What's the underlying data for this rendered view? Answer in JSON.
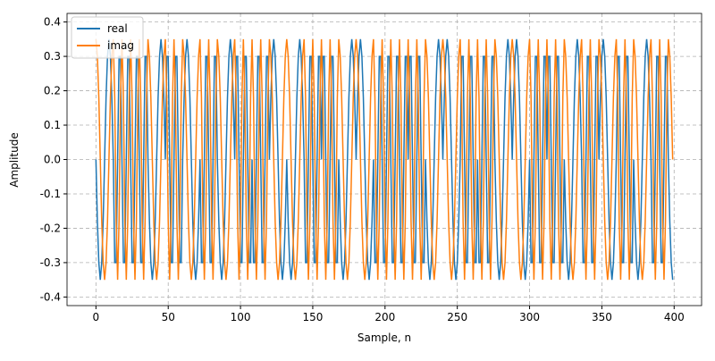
{
  "chart_data": {
    "type": "line",
    "xlabel": "Sample, n",
    "ylabel": "Amplitude",
    "xlim": [
      -20,
      419
    ],
    "ylim": [
      -0.425,
      0.425
    ],
    "xticks": [
      0,
      50,
      100,
      150,
      200,
      250,
      300,
      350,
      400
    ],
    "yticks": [
      -0.4,
      -0.3,
      -0.2,
      -0.1,
      {
        "value": 0,
        "label": "0.0"
      },
      0.1,
      0.2,
      0.3,
      0.4
    ],
    "grid": true,
    "legend": "upper-left",
    "x": [
      0,
      1,
      2,
      3,
      4,
      5,
      6,
      7,
      8,
      9,
      10,
      11,
      12,
      13,
      14,
      15,
      16,
      17,
      18,
      19,
      20,
      21,
      22,
      23,
      24,
      25,
      26,
      27,
      28,
      29,
      30,
      31,
      32,
      33,
      34,
      35,
      36,
      37,
      38,
      39,
      40,
      41,
      42,
      43,
      44,
      45,
      46,
      47,
      48,
      49,
      50,
      51,
      52,
      53,
      54,
      55,
      56,
      57,
      58,
      59,
      60,
      61,
      62,
      63,
      64,
      65,
      66,
      67,
      68,
      69,
      70,
      71,
      72,
      73,
      74,
      75,
      76,
      77,
      78,
      79,
      80,
      81,
      82,
      83,
      84,
      85,
      86,
      87,
      88,
      89,
      90,
      91,
      92,
      93,
      94,
      95,
      96,
      97,
      98,
      99,
      100,
      101,
      102,
      103,
      104,
      105,
      106,
      107,
      108,
      109,
      110,
      111,
      112,
      113,
      114,
      115,
      116,
      117,
      118,
      119,
      120,
      121,
      122,
      123,
      124,
      125,
      126,
      127,
      128,
      129,
      130,
      131,
      132,
      133,
      134,
      135,
      136,
      137,
      138,
      139,
      140,
      141,
      142,
      143,
      144,
      145,
      146,
      147,
      148,
      149,
      150,
      151,
      152,
      153,
      154,
      155,
      156,
      157,
      158,
      159,
      160,
      161,
      162,
      163,
      164,
      165,
      166,
      167,
      168,
      169,
      170,
      171,
      172,
      173,
      174,
      175,
      176,
      177,
      178,
      179,
      180,
      181,
      182,
      183,
      184,
      185,
      186,
      187,
      188,
      189,
      190,
      191,
      192,
      193,
      194,
      195,
      196,
      197,
      198,
      199,
      200,
      201,
      202,
      203,
      204,
      205,
      206,
      207,
      208,
      209,
      210,
      211,
      212,
      213,
      214,
      215,
      216,
      217,
      218,
      219,
      220,
      221,
      222,
      223,
      224,
      225,
      226,
      227,
      228,
      229,
      230,
      231,
      232,
      233,
      234,
      235,
      236,
      237,
      238,
      239,
      240,
      241,
      242,
      243,
      244,
      245,
      246,
      247,
      248,
      249,
      250,
      251,
      252,
      253,
      254,
      255,
      256,
      257,
      258,
      259,
      260,
      261,
      262,
      263,
      264,
      265,
      266,
      267,
      268,
      269,
      270,
      271,
      272,
      273,
      274,
      275,
      276,
      277,
      278,
      279,
      280,
      281,
      282,
      283,
      284,
      285,
      286,
      287,
      288,
      289,
      290,
      291,
      292,
      293,
      294,
      295,
      296,
      297,
      298,
      299,
      300,
      301,
      302,
      303,
      304,
      305,
      306,
      307,
      308,
      309,
      310,
      311,
      312,
      313,
      314,
      315,
      316,
      317,
      318,
      319,
      320,
      321,
      322,
      323,
      324,
      325,
      326,
      327,
      328,
      329,
      330,
      331,
      332,
      333,
      334,
      335,
      336,
      337,
      338,
      339,
      340,
      341,
      342,
      343,
      344,
      345,
      346,
      347,
      348,
      349,
      350,
      351,
      352,
      353,
      354,
      355,
      356,
      357,
      358,
      359,
      360,
      361,
      362,
      363,
      364,
      365,
      366,
      367,
      368,
      369,
      370,
      371,
      372,
      373,
      374,
      375,
      376,
      377,
      378,
      379,
      380,
      381,
      382,
      383,
      384,
      385,
      386,
      387,
      388,
      389,
      390,
      391,
      392,
      393,
      394,
      395,
      396,
      397,
      398,
      399
    ],
    "series": [
      {
        "name": "real",
        "color": "#1f77b4",
        "values": [
          0,
          -0.18,
          -0.3,
          -0.35,
          -0.3,
          -0.18,
          0,
          0.18,
          0.3,
          0.35,
          0.3,
          0.18,
          0,
          -0.3,
          -0.3,
          0,
          0.3,
          0.3,
          0,
          -0.3,
          -0.3,
          0,
          0.3,
          0.3,
          0,
          -0.3,
          -0.3,
          0,
          0.3,
          0.3,
          0,
          -0.3,
          -0.3,
          0,
          0.3,
          0.3,
          0,
          -0.18,
          -0.3,
          -0.35,
          -0.3,
          -0.18,
          0,
          0.18,
          0.3,
          0.35,
          0.3,
          0.18,
          0,
          0.3,
          0.3,
          0,
          -0.3,
          -0.3,
          0,
          0.3,
          0.3,
          0,
          -0.3,
          -0.3,
          0,
          0.18,
          0.3,
          0.35,
          0.3,
          0.18,
          0,
          -0.18,
          -0.3,
          -0.35,
          -0.3,
          -0.18,
          0,
          -0.3,
          -0.3,
          0,
          0.3,
          0.3,
          0,
          -0.3,
          -0.3,
          0,
          0.3,
          0.3,
          0,
          -0.18,
          -0.3,
          -0.35,
          -0.3,
          -0.18,
          0,
          0.18,
          0.3,
          0.35,
          0.3,
          0.18,
          0,
          0.3,
          0.3,
          0,
          -0.3,
          -0.3,
          0,
          0.3,
          0.3,
          0,
          -0.3,
          -0.3,
          0,
          -0.3,
          -0.3,
          0,
          0.3,
          0.3,
          0,
          -0.3,
          -0.3,
          0,
          0.3,
          0.3,
          0,
          0.18,
          0.3,
          0.35,
          0.3,
          0.18,
          0,
          -0.18,
          -0.3,
          -0.35,
          -0.3,
          -0.18,
          0,
          -0.18,
          -0.3,
          -0.35,
          -0.3,
          -0.18,
          0,
          0.18,
          0.3,
          0.35,
          0.3,
          0.18,
          0,
          -0.3,
          -0.3,
          0,
          0.3,
          0.3,
          0,
          -0.3,
          -0.3,
          0,
          0.3,
          0.3,
          0,
          0.3,
          0.3,
          0,
          -0.3,
          -0.3,
          0,
          0.3,
          0.3,
          0,
          -0.3,
          -0.3,
          0,
          -0.18,
          -0.3,
          -0.35,
          -0.3,
          -0.18,
          0,
          0.18,
          0.3,
          0.35,
          0.3,
          0.18,
          0,
          0.18,
          0.3,
          0.35,
          0.3,
          0.18,
          0,
          -0.18,
          -0.3,
          -0.35,
          -0.3,
          -0.18,
          0,
          -0.3,
          -0.3,
          0,
          0.3,
          0.3,
          0,
          -0.3,
          -0.3,
          0,
          0.3,
          0.3,
          0,
          -0.3,
          -0.3,
          0,
          0.3,
          0.3,
          0,
          -0.3,
          -0.3,
          0,
          0.3,
          0.3,
          0,
          0.3,
          0.3,
          0,
          -0.3,
          -0.3,
          0,
          0.3,
          0.3,
          0,
          -0.3,
          -0.3,
          0,
          -0.18,
          -0.3,
          -0.35,
          -0.3,
          -0.18,
          0,
          0.18,
          0.3,
          0.35,
          0.3,
          0.18,
          0,
          0.18,
          0.3,
          0.35,
          0.3,
          0.18,
          0,
          -0.18,
          -0.3,
          -0.35,
          -0.3,
          -0.18,
          0,
          0.3,
          0.3,
          0,
          -0.3,
          -0.3,
          0,
          0.3,
          0.3,
          0,
          -0.3,
          -0.3,
          0,
          -0.3,
          -0.3,
          0,
          0.3,
          0.3,
          0,
          -0.3,
          -0.3,
          0,
          0.3,
          0.3,
          0,
          -0.18,
          -0.3,
          -0.35,
          -0.3,
          -0.18,
          0,
          0.18,
          0.3,
          0.35,
          0.3,
          0.18,
          0,
          0.18,
          0.3,
          0.35,
          0.3,
          0.18,
          0,
          -0.18,
          -0.3,
          -0.35,
          -0.3,
          -0.18,
          0,
          -0.3,
          -0.3,
          0,
          0.3,
          0.3,
          0,
          -0.3,
          -0.3,
          0,
          0.3,
          0.3,
          0,
          0.3,
          0.3,
          0,
          -0.3,
          -0.3,
          0,
          0.3,
          0.3,
          0,
          -0.3,
          -0.3,
          0,
          -0.18,
          -0.3,
          -0.35,
          -0.3,
          -0.18,
          0,
          0.18,
          0.3,
          0.35,
          0.3,
          0.18,
          0,
          -0.3,
          -0.3,
          0,
          0.3,
          0.3,
          0,
          -0.3,
          -0.3,
          0,
          0.3,
          0.3,
          0,
          0.18,
          0.3,
          0.35,
          0.3,
          0.18,
          0,
          -0.18,
          -0.3,
          -0.35,
          -0.3,
          -0.18,
          0,
          0.3,
          0.3,
          0,
          -0.3,
          -0.3,
          0,
          0.3,
          0.3,
          0,
          -0.3,
          -0.3,
          0,
          -0.18,
          -0.3,
          -0.35,
          -0.3,
          -0.18,
          0,
          0.18,
          0.3,
          0.35,
          0.3,
          0.18,
          0,
          -0.3,
          -0.3,
          0,
          0.3,
          0.3,
          0,
          -0.3,
          -0.3,
          0,
          0.3,
          0.3,
          0,
          -0.18,
          -0.3,
          -0.35
        ]
      },
      {
        "name": "imag",
        "color": "#ff7f0e",
        "values": [
          0.35,
          0.3,
          0.18,
          0,
          -0.18,
          -0.3,
          -0.35,
          -0.3,
          -0.18,
          0,
          0.18,
          0.3,
          0.35,
          0.18,
          -0.18,
          -0.35,
          -0.18,
          0.18,
          0.35,
          0.18,
          -0.18,
          -0.35,
          -0.18,
          0.18,
          0.35,
          0.18,
          -0.18,
          -0.35,
          -0.18,
          0.18,
          0.35,
          0.18,
          -0.18,
          -0.35,
          -0.18,
          0.18,
          0.35,
          0.3,
          0.18,
          0,
          -0.18,
          -0.3,
          -0.35,
          -0.3,
          -0.18,
          0,
          0.18,
          0.3,
          0.35,
          0.18,
          -0.18,
          -0.35,
          -0.18,
          0.18,
          0.35,
          0.18,
          -0.18,
          -0.35,
          -0.18,
          0.18,
          0.35,
          0.3,
          0.18,
          0,
          -0.18,
          -0.3,
          -0.35,
          -0.3,
          -0.18,
          0,
          0.18,
          0.3,
          0.35,
          0.18,
          -0.18,
          -0.35,
          -0.18,
          0.18,
          0.35,
          0.18,
          -0.18,
          -0.35,
          -0.18,
          0.18,
          0.35,
          0.3,
          0.18,
          0,
          -0.18,
          -0.3,
          -0.35,
          -0.3,
          -0.18,
          0,
          0.18,
          0.3,
          0.35,
          0.18,
          -0.18,
          -0.35,
          -0.18,
          0.18,
          0.35,
          0.18,
          -0.18,
          -0.35,
          -0.18,
          0.18,
          0.35,
          0.18,
          -0.18,
          -0.35,
          -0.18,
          0.18,
          0.35,
          0.18,
          -0.18,
          -0.35,
          -0.18,
          0.18,
          0.35,
          0.3,
          0.18,
          0,
          -0.18,
          -0.3,
          -0.35,
          -0.3,
          -0.18,
          0,
          0.18,
          0.3,
          0.35,
          0.3,
          0.18,
          0,
          -0.18,
          -0.3,
          -0.35,
          -0.3,
          -0.18,
          0,
          0.18,
          0.3,
          0.35,
          0.18,
          -0.18,
          -0.35,
          -0.18,
          0.18,
          0.35,
          0.18,
          -0.18,
          -0.35,
          -0.18,
          0.18,
          0.35,
          0.18,
          -0.18,
          -0.35,
          -0.18,
          0.18,
          0.35,
          0.18,
          -0.18,
          -0.35,
          -0.18,
          0.18,
          0.35,
          0.3,
          0.18,
          0,
          -0.18,
          -0.3,
          -0.35,
          -0.3,
          -0.18,
          0,
          0.18,
          0.3,
          0.35,
          0.3,
          0.18,
          0,
          -0.18,
          -0.3,
          -0.35,
          -0.3,
          -0.18,
          0,
          0.18,
          0.3,
          0.35,
          0.18,
          -0.18,
          -0.35,
          -0.18,
          0.18,
          0.35,
          0.18,
          -0.18,
          -0.35,
          -0.18,
          0.18,
          0.35,
          0.18,
          -0.18,
          -0.35,
          -0.18,
          0.18,
          0.35,
          0.18,
          -0.18,
          -0.35,
          -0.18,
          0.18,
          0.35,
          0.18,
          -0.18,
          -0.35,
          -0.18,
          0.18,
          0.35,
          0.18,
          -0.18,
          -0.35,
          -0.18,
          0.18,
          0.35,
          0.3,
          0.18,
          0,
          -0.18,
          -0.3,
          -0.35,
          -0.3,
          -0.18,
          0,
          0.18,
          0.3,
          0.35,
          0.3,
          0.18,
          0,
          -0.18,
          -0.3,
          -0.35,
          -0.3,
          -0.18,
          0,
          0.18,
          0.3,
          0.35,
          0.18,
          -0.18,
          -0.35,
          -0.18,
          0.18,
          0.35,
          0.18,
          -0.18,
          -0.35,
          -0.18,
          0.18,
          0.35,
          0.18,
          -0.18,
          -0.35,
          -0.18,
          0.18,
          0.35,
          0.18,
          -0.18,
          -0.35,
          -0.18,
          0.18,
          0.35,
          0.3,
          0.18,
          0,
          -0.18,
          -0.3,
          -0.35,
          -0.3,
          -0.18,
          0,
          0.18,
          0.3,
          0.35,
          0.3,
          0.18,
          0,
          -0.18,
          -0.3,
          -0.35,
          -0.3,
          -0.18,
          0,
          0.18,
          0.3,
          0.35,
          0.18,
          -0.18,
          -0.35,
          -0.18,
          0.18,
          0.35,
          0.18,
          -0.18,
          -0.35,
          -0.18,
          0.18,
          0.35,
          0.18,
          -0.18,
          -0.35,
          -0.18,
          0.18,
          0.35,
          0.18,
          -0.18,
          -0.35,
          -0.18,
          0.18,
          0.35,
          0.3,
          0.18,
          0,
          -0.18,
          -0.3,
          -0.35,
          -0.3,
          -0.18,
          0,
          0.18,
          0.3,
          0.35,
          0.18,
          -0.18,
          -0.35,
          -0.18,
          0.18,
          0.35,
          0.18,
          -0.18,
          -0.35,
          -0.18,
          0.18,
          0.35,
          0.3,
          0.18,
          0,
          -0.18,
          -0.3,
          -0.35,
          -0.3,
          -0.18,
          0,
          0.18,
          0.3,
          0.35,
          0.18,
          -0.18,
          -0.35,
          -0.18,
          0.18,
          0.35,
          0.18,
          -0.18,
          -0.35,
          -0.18,
          0.18,
          0.35,
          0.3,
          0.18,
          0,
          -0.18,
          -0.3,
          -0.35,
          -0.3,
          -0.18,
          0,
          0.18,
          0.3,
          0.35,
          0.18,
          -0.18,
          -0.35,
          -0.18,
          0.18,
          0.35,
          0.18,
          -0.18,
          -0.35,
          -0.18,
          0.18,
          0.35,
          0.3,
          0.18,
          0
        ]
      }
    ]
  }
}
